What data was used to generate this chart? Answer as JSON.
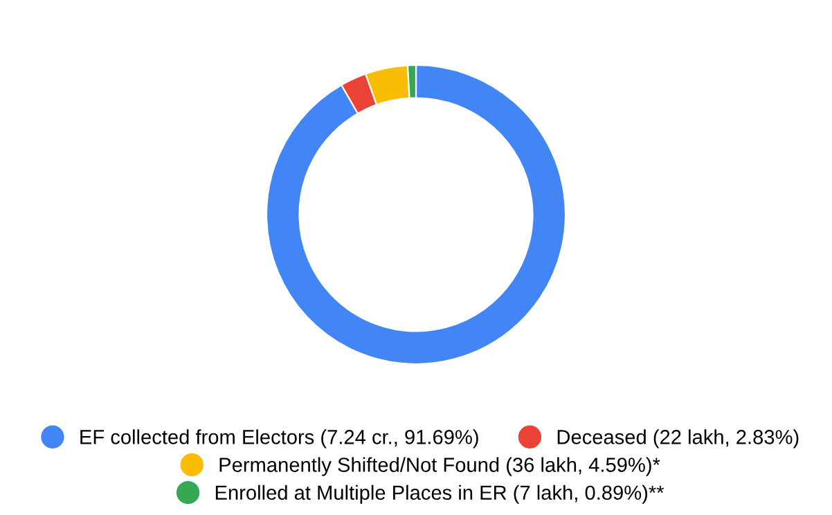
{
  "chart_data": {
    "type": "donut",
    "categories": [
      "EF collected from Electors (7.24 cr., 91.69%)",
      "Deceased (22 lakh, 2.83%)",
      "Permanently Shifted/Not Found (36 lakh, 4.59%)*",
      "Enrolled at Multiple Places in ER (7 lakh, 0.89%)**"
    ],
    "values": [
      91.69,
      2.83,
      4.59,
      0.89
    ],
    "colors": [
      "#4285f4",
      "#ea4335",
      "#fbbc04",
      "#34a853"
    ],
    "legend": "bottom"
  }
}
